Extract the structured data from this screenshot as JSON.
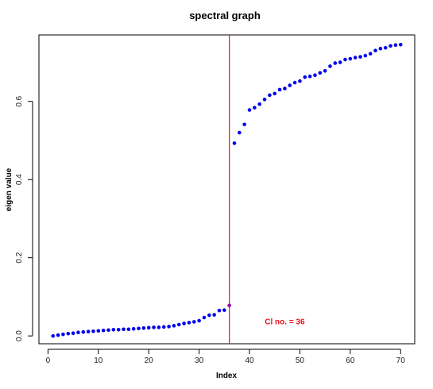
{
  "chart_data": {
    "type": "scatter",
    "title": "spectral graph",
    "xlabel": "Index",
    "ylabel": "eigen value",
    "xlim": [
      -1.8,
      72.8
    ],
    "ylim": [
      -0.02,
      0.77
    ],
    "xticks": [
      0,
      10,
      20,
      30,
      40,
      50,
      60,
      70
    ],
    "yticks": [
      0.0,
      0.2,
      0.4,
      0.6
    ],
    "ytick_labels": [
      "0.0",
      "0.2",
      "0.4",
      "0.6"
    ],
    "grid": false,
    "series_color": "#0000ee",
    "last_point_color": "#9900aa",
    "x": [
      1,
      2,
      3,
      4,
      5,
      6,
      7,
      8,
      9,
      10,
      11,
      12,
      13,
      14,
      15,
      16,
      17,
      18,
      19,
      20,
      21,
      22,
      23,
      24,
      25,
      26,
      27,
      28,
      29,
      30,
      31,
      32,
      33,
      34,
      35,
      36,
      37,
      38,
      39,
      40,
      41,
      42,
      43,
      44,
      45,
      46,
      47,
      48,
      49,
      50,
      51,
      52,
      53,
      54,
      55,
      56,
      57,
      58,
      59,
      60,
      61,
      62,
      63,
      64,
      65,
      66,
      67,
      68,
      69,
      70
    ],
    "values": [
      0.0,
      0.002,
      0.004,
      0.006,
      0.007,
      0.009,
      0.01,
      0.011,
      0.012,
      0.013,
      0.014,
      0.015,
      0.016,
      0.016,
      0.017,
      0.017,
      0.018,
      0.019,
      0.02,
      0.021,
      0.022,
      0.022,
      0.023,
      0.024,
      0.026,
      0.029,
      0.032,
      0.034,
      0.036,
      0.039,
      0.047,
      0.053,
      0.054,
      0.065,
      0.066,
      0.078,
      0.493,
      0.52,
      0.541,
      0.578,
      0.584,
      0.593,
      0.605,
      0.616,
      0.62,
      0.63,
      0.633,
      0.641,
      0.648,
      0.652,
      0.662,
      0.664,
      0.667,
      0.673,
      0.678,
      0.69,
      0.698,
      0.7,
      0.707,
      0.709,
      0.712,
      0.714,
      0.717,
      0.722,
      0.73,
      0.735,
      0.737,
      0.742,
      0.744,
      0.745
    ],
    "vline": {
      "x": 36,
      "color": "#e8121c"
    },
    "annotation": {
      "text": "Cl no. = 36",
      "x": 47,
      "y": 0.036,
      "color": "#e8121c"
    }
  }
}
